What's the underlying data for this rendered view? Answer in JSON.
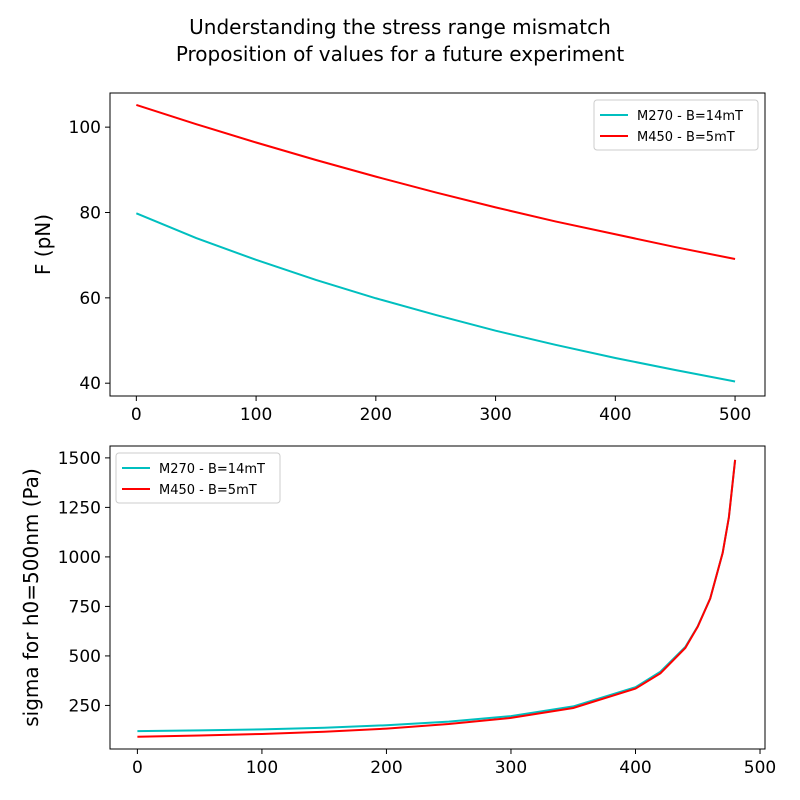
{
  "figure": {
    "title_lines": [
      "Understanding the stress range mismatch",
      "Proposition of values for a future experiment"
    ]
  },
  "chart_data": [
    {
      "type": "line",
      "xlabel": "",
      "ylabel": "F (pN)",
      "xlim": [
        -22,
        525
      ],
      "ylim": [
        37,
        108
      ],
      "xticks": [
        0,
        100,
        200,
        300,
        400,
        500
      ],
      "yticks": [
        40,
        60,
        80,
        100
      ],
      "legend_placement": "upper-right",
      "grid": false,
      "series": [
        {
          "name": "M270 - B=14mT",
          "color": "#00bfbf",
          "x": [
            0,
            50,
            100,
            150,
            200,
            250,
            300,
            350,
            400,
            450,
            500
          ],
          "y": [
            79.8,
            74.0,
            68.9,
            64.2,
            59.9,
            56.0,
            52.3,
            49.0,
            45.9,
            43.1,
            40.4
          ]
        },
        {
          "name": "M450 - B=5mT",
          "color": "#ff0000",
          "x": [
            0,
            50,
            100,
            150,
            200,
            250,
            300,
            350,
            400,
            450,
            500
          ],
          "y": [
            105.2,
            100.7,
            96.4,
            92.3,
            88.4,
            84.7,
            81.2,
            77.9,
            74.9,
            71.9,
            69.1
          ]
        }
      ]
    },
    {
      "type": "line",
      "xlabel": "",
      "ylabel": "sigma for h0=500nm (Pa)",
      "xlim": [
        -22,
        504
      ],
      "ylim": [
        30,
        1560
      ],
      "xticks": [
        0,
        100,
        200,
        300,
        400,
        500
      ],
      "yticks": [
        250,
        500,
        750,
        1000,
        1250,
        1500
      ],
      "legend_placement": "upper-left",
      "grid": false,
      "series": [
        {
          "name": "M270 - B=14mT",
          "color": "#00bfbf",
          "x": [
            0,
            50,
            100,
            150,
            200,
            250,
            300,
            350,
            400,
            420,
            440,
            450,
            460,
            470,
            475,
            480
          ],
          "y": [
            120,
            124,
            129,
            137,
            150,
            168,
            196,
            245,
            342,
            420,
            545,
            650,
            790,
            1020,
            1200,
            1490
          ]
        },
        {
          "name": "M450 - B=5mT",
          "color": "#ff0000",
          "x": [
            0,
            50,
            100,
            150,
            200,
            250,
            300,
            350,
            400,
            420,
            440,
            450,
            460,
            470,
            475,
            480
          ],
          "y": [
            92,
            98,
            106,
            117,
            133,
            156,
            187,
            237,
            335,
            412,
            540,
            648,
            790,
            1020,
            1200,
            1490
          ]
        }
      ]
    }
  ]
}
